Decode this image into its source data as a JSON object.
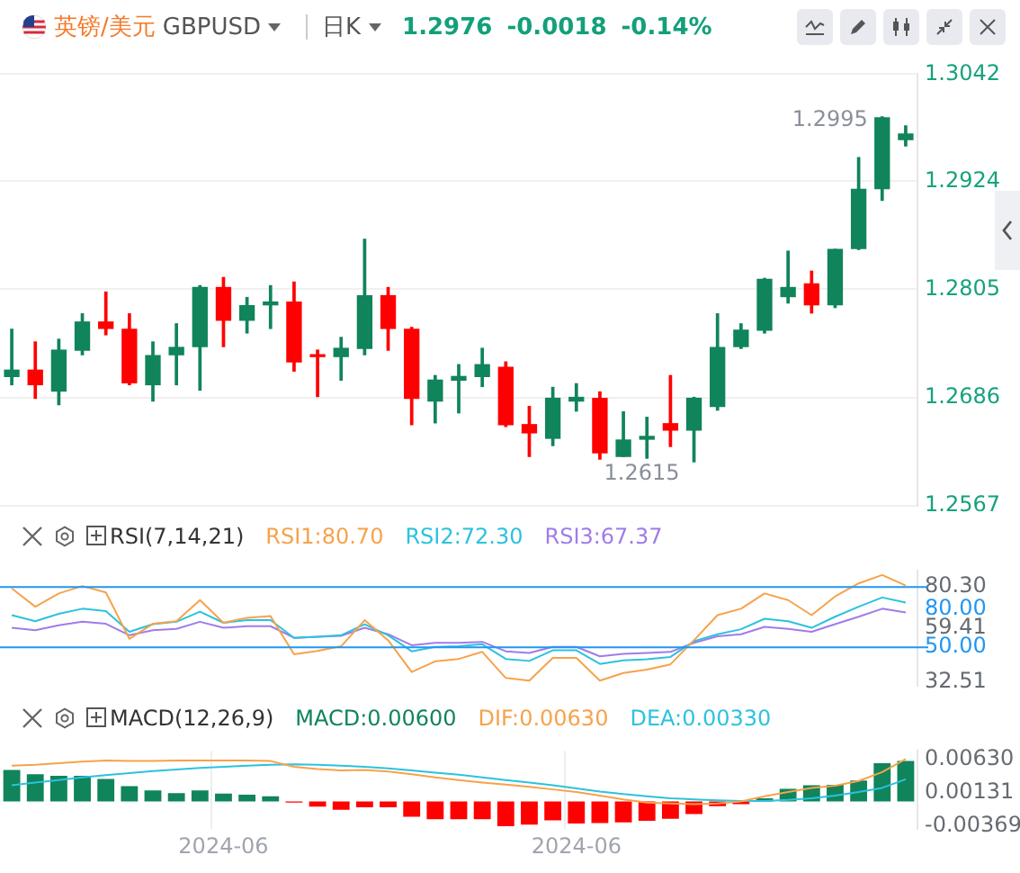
{
  "chart_data": [
    {
      "type": "candlestick",
      "title": "英镑/美元",
      "subtitle": "GBPUSD",
      "annotations": [
        "日K",
        "1.2976",
        "-0.0018",
        "-0.14%",
        "1.2995",
        "1.2615"
      ],
      "categories": [
        null,
        null,
        null,
        null,
        null,
        null,
        null,
        null,
        null,
        null,
        null,
        null,
        null,
        null,
        null,
        null,
        null,
        null,
        null,
        null,
        null,
        null,
        null,
        null,
        null,
        null,
        null,
        null,
        null,
        null,
        null,
        null,
        null,
        null,
        null,
        null,
        null,
        null,
        null
      ],
      "ohlc": [
        [
          1.2709,
          1.2761,
          1.27,
          1.2716
        ],
        [
          1.2716,
          1.2747,
          1.2685,
          1.27
        ],
        [
          1.2693,
          1.275,
          1.2678,
          1.2738
        ],
        [
          1.2738,
          1.2778,
          1.2733,
          1.2769
        ],
        [
          1.2769,
          1.2802,
          1.2755,
          1.2762
        ],
        [
          1.2761,
          1.2778,
          1.27,
          1.2702
        ],
        [
          1.27,
          1.2747,
          1.2682,
          1.2732
        ],
        [
          1.2733,
          1.2767,
          1.27,
          1.2741
        ],
        [
          1.2742,
          1.2809,
          1.2694,
          1.2807
        ],
        [
          1.2807,
          1.2818,
          1.2742,
          1.2771
        ],
        [
          1.2771,
          1.2796,
          1.2757,
          1.2787
        ],
        [
          1.2788,
          1.2809,
          1.2762,
          1.2791
        ],
        [
          1.2791,
          1.2813,
          1.2715,
          1.2725
        ],
        [
          1.2732,
          1.2738,
          1.2687,
          1.2731
        ],
        [
          1.2731,
          1.2752,
          1.2705,
          1.274
        ],
        [
          1.274,
          1.286,
          1.2733,
          1.2798
        ],
        [
          1.2798,
          1.2807,
          1.2738,
          1.2762
        ],
        [
          1.2761,
          1.2763,
          1.2656,
          1.2685
        ],
        [
          1.2682,
          1.271,
          1.2658,
          1.2705
        ],
        [
          1.2705,
          1.2722,
          1.2669,
          1.2709
        ],
        [
          1.2709,
          1.274,
          1.2698,
          1.2722
        ],
        [
          1.2719,
          1.2725,
          1.2654,
          1.2656
        ],
        [
          1.2656,
          1.2676,
          1.2621,
          1.2647
        ],
        [
          1.2641,
          1.2697,
          1.2633,
          1.2685
        ],
        [
          1.2682,
          1.2701,
          1.2671,
          1.2686
        ],
        [
          1.2685,
          1.2692,
          1.2618,
          1.2625
        ],
        [
          1.2621,
          1.267,
          1.2621,
          1.2639
        ],
        [
          1.264,
          1.2664,
          1.2619,
          1.2643
        ],
        [
          1.2657,
          1.271,
          1.2632,
          1.265
        ],
        [
          1.265,
          1.2686,
          1.2615,
          1.2685
        ],
        [
          1.2676,
          1.2778,
          1.2672,
          1.2741
        ],
        [
          1.2742,
          1.2767,
          1.274,
          1.276
        ],
        [
          1.276,
          1.2817,
          1.2757,
          1.2816
        ],
        [
          1.2797,
          1.2847,
          1.279,
          1.2807
        ],
        [
          1.2811,
          1.2825,
          1.2779,
          1.2788
        ],
        [
          1.2788,
          1.2849,
          1.2785,
          1.2849
        ],
        [
          1.285,
          1.295,
          1.2849,
          1.2915
        ],
        [
          1.2916,
          1.2995,
          1.2903,
          1.2994
        ],
        [
          1.297,
          1.2985,
          1.2963,
          1.2976
        ]
      ],
      "colors": [
        "#10845a",
        "#ff0000",
        "#10845a",
        "#10845a",
        "#ff0000",
        "#ff0000",
        "#10845a",
        "#10845a",
        "#10845a",
        "#ff0000",
        "#10845a",
        "#10845a",
        "#ff0000",
        "#ff0000",
        "#10845a",
        "#10845a",
        "#ff0000",
        "#ff0000",
        "#10845a",
        "#10845a",
        "#10845a",
        "#ff0000",
        "#ff0000",
        "#10845a",
        "#10845a",
        "#ff0000",
        "#10845a",
        "#10845a",
        "#ff0000",
        "#10845a",
        "#10845a",
        "#10845a",
        "#10845a",
        "#10845a",
        "#ff0000",
        "#10845a",
        "#10845a",
        "#10845a",
        "#10845a"
      ],
      "ylim": [
        1.2567,
        1.3042
      ],
      "yticks": [
        1.2567,
        1.2686,
        1.2805,
        1.2924,
        1.3042
      ],
      "grid": "y",
      "tick_labels": "y"
    },
    {
      "type": "line",
      "annotations": [
        "RSI(7,14,21)"
      ],
      "categories": [
        null,
        null,
        null,
        null,
        null,
        null,
        null,
        null,
        null,
        null,
        null,
        null,
        null,
        null,
        null,
        null,
        null,
        null,
        null,
        null,
        null,
        null,
        null,
        null,
        null,
        null,
        null,
        null,
        null,
        null,
        null,
        null,
        null,
        null,
        null,
        null,
        null,
        null,
        null
      ],
      "series": [
        {
          "name": "RSI1:80.70",
          "color": "#f7a24b",
          "values": [
            79.3,
            70.2,
            76.8,
            80.5,
            77.3,
            54.2,
            61.7,
            63.0,
            73.5,
            62.2,
            64.7,
            65.5,
            46.5,
            48.2,
            50.5,
            63.5,
            53.5,
            37.7,
            43.0,
            44.2,
            47.7,
            34.7,
            33.4,
            44.7,
            44.7,
            33.4,
            37.2,
            38.9,
            41.5,
            53.5,
            66.0,
            69.2,
            76.8,
            73.5,
            66.0,
            75.3,
            81.8,
            86.0,
            80.7
          ]
        },
        {
          "name": "RSI2:72.30",
          "color": "#2cc2de",
          "values": [
            66.0,
            63.0,
            66.7,
            69.2,
            68.0,
            57.7,
            61.5,
            62.7,
            67.7,
            62.2,
            63.5,
            63.5,
            54.7,
            55.2,
            56.0,
            61.5,
            56.0,
            48.0,
            50.2,
            50.5,
            51.5,
            44.2,
            43.2,
            48.5,
            48.5,
            41.7,
            43.5,
            44.0,
            45.2,
            53.0,
            56.5,
            59.0,
            64.2,
            63.0,
            59.7,
            65.2,
            70.2,
            74.8,
            72.3
          ]
        },
        {
          "name": "RSI3:67.37",
          "color": "#a07ce8",
          "values": [
            59.7,
            58.5,
            61.0,
            62.7,
            61.7,
            56.0,
            58.5,
            59.2,
            62.7,
            59.7,
            60.5,
            60.5,
            54.7,
            55.2,
            55.7,
            59.7,
            56.5,
            51.0,
            52.2,
            52.2,
            52.7,
            48.0,
            47.2,
            50.2,
            50.2,
            45.5,
            46.7,
            47.2,
            47.7,
            52.2,
            55.5,
            56.5,
            60.2,
            59.2,
            57.7,
            61.5,
            65.2,
            69.2,
            67.37
          ]
        }
      ],
      "ylim": [
        31,
        88
      ],
      "yticks": [
        {
          "value": 32.51,
          "label": "32.51"
        },
        {
          "value": 59.41,
          "label": "59.41"
        },
        {
          "value": 80.3,
          "label": "80.30"
        }
      ],
      "ref_lines": [
        {
          "axis": "y",
          "value": 80,
          "label": "80.00",
          "color": "#2196f3"
        },
        {
          "axis": "y",
          "value": 50,
          "label": "50.00",
          "color": "#2196f3"
        }
      ],
      "legend": "top",
      "tick_labels": "y"
    },
    {
      "type": "bar",
      "annotations": [
        "MACD(12,26,9)"
      ],
      "categories": [
        null,
        null,
        null,
        null,
        null,
        null,
        null,
        null,
        null,
        "2024-06",
        null,
        null,
        null,
        null,
        null,
        null,
        null,
        null,
        null,
        null,
        null,
        null,
        null,
        null,
        "2024-06",
        null,
        null,
        null,
        null,
        null,
        null,
        null,
        null,
        null,
        null,
        null,
        null,
        null,
        null
      ],
      "series": [
        {
          "name": "MACD:0.00600",
          "colors": [
            "#10845a",
            "#10845a",
            "#10845a",
            "#10845a",
            "#10845a",
            "#10845a",
            "#10845a",
            "#10845a",
            "#10845a",
            "#10845a",
            "#10845a",
            "#10845a",
            "#ff0000",
            "#ff0000",
            "#ff0000",
            "#ff0000",
            "#ff0000",
            "#ff0000",
            "#ff0000",
            "#ff0000",
            "#ff0000",
            "#ff0000",
            "#ff0000",
            "#ff0000",
            "#ff0000",
            "#ff0000",
            "#ff0000",
            "#ff0000",
            "#ff0000",
            "#ff0000",
            "#ff0000",
            "#ff0000",
            "#10845a",
            "#10845a",
            "#10845a",
            "#10845a",
            "#10845a",
            "#10845a",
            "#10845a"
          ],
          "values": [
            0.00467,
            0.00405,
            0.00382,
            0.00382,
            0.00335,
            0.00226,
            0.00164,
            0.00125,
            0.00164,
            0.00117,
            0.00101,
            0.00078,
            -0.00016,
            -0.00078,
            -0.00125,
            -0.00086,
            -0.00086,
            -0.00226,
            -0.00265,
            -0.00265,
            -0.00265,
            -0.00366,
            -0.00343,
            -0.0028,
            -0.00327,
            -0.00319,
            -0.00312,
            -0.00288,
            -0.00257,
            -0.00187,
            -0.0007,
            -0.00039,
            0.00047,
            0.00187,
            0.00241,
            0.00249,
            0.00312,
            0.00569,
            0.006
          ]
        },
        {
          "name": "DIF:0.00630",
          "type": "line",
          "color": "#f7a24b",
          "values": [
            0.0053,
            0.00545,
            0.00569,
            0.00592,
            0.00608,
            0.006,
            0.006,
            0.00608,
            0.00608,
            0.00608,
            0.00608,
            0.006,
            0.00514,
            0.00483,
            0.0046,
            0.00467,
            0.00444,
            0.00405,
            0.00358,
            0.00319,
            0.00281,
            0.0025,
            0.00219,
            0.00179,
            0.0014,
            0.00086,
            0.00031,
            -0.00016,
            -0.00031,
            -0.00039,
            -0.00031,
            0.0,
            0.00078,
            0.0014,
            0.00202,
            0.00234,
            0.00304,
            0.00436,
            0.0063
          ]
        },
        {
          "name": "DEA:0.00330",
          "type": "line",
          "color": "#2cc2de",
          "values": [
            0.00241,
            0.0028,
            0.00319,
            0.00358,
            0.0039,
            0.00421,
            0.00452,
            0.00475,
            0.00499,
            0.00514,
            0.0053,
            0.00545,
            0.00553,
            0.00545,
            0.0053,
            0.00514,
            0.00491,
            0.0046,
            0.00428,
            0.00397,
            0.00358,
            0.00319,
            0.0028,
            0.00241,
            0.00195,
            0.00148,
            0.00109,
            0.00078,
            0.00047,
            0.00031,
            0.00016,
            8e-05,
            8e-05,
            0.00023,
            0.00047,
            0.00086,
            0.0014,
            0.00202,
            0.0033
          ]
        }
      ],
      "ylim": [
        -0.0041,
        0.0075
      ],
      "yticks": [
        {
          "value": -0.00369,
          "label": "-0.00369"
        },
        {
          "value": 0.00131,
          "label": "0.00131"
        },
        {
          "value": 0.0063,
          "label": "0.00630"
        }
      ],
      "legend": "top",
      "grid": "x"
    }
  ]
}
